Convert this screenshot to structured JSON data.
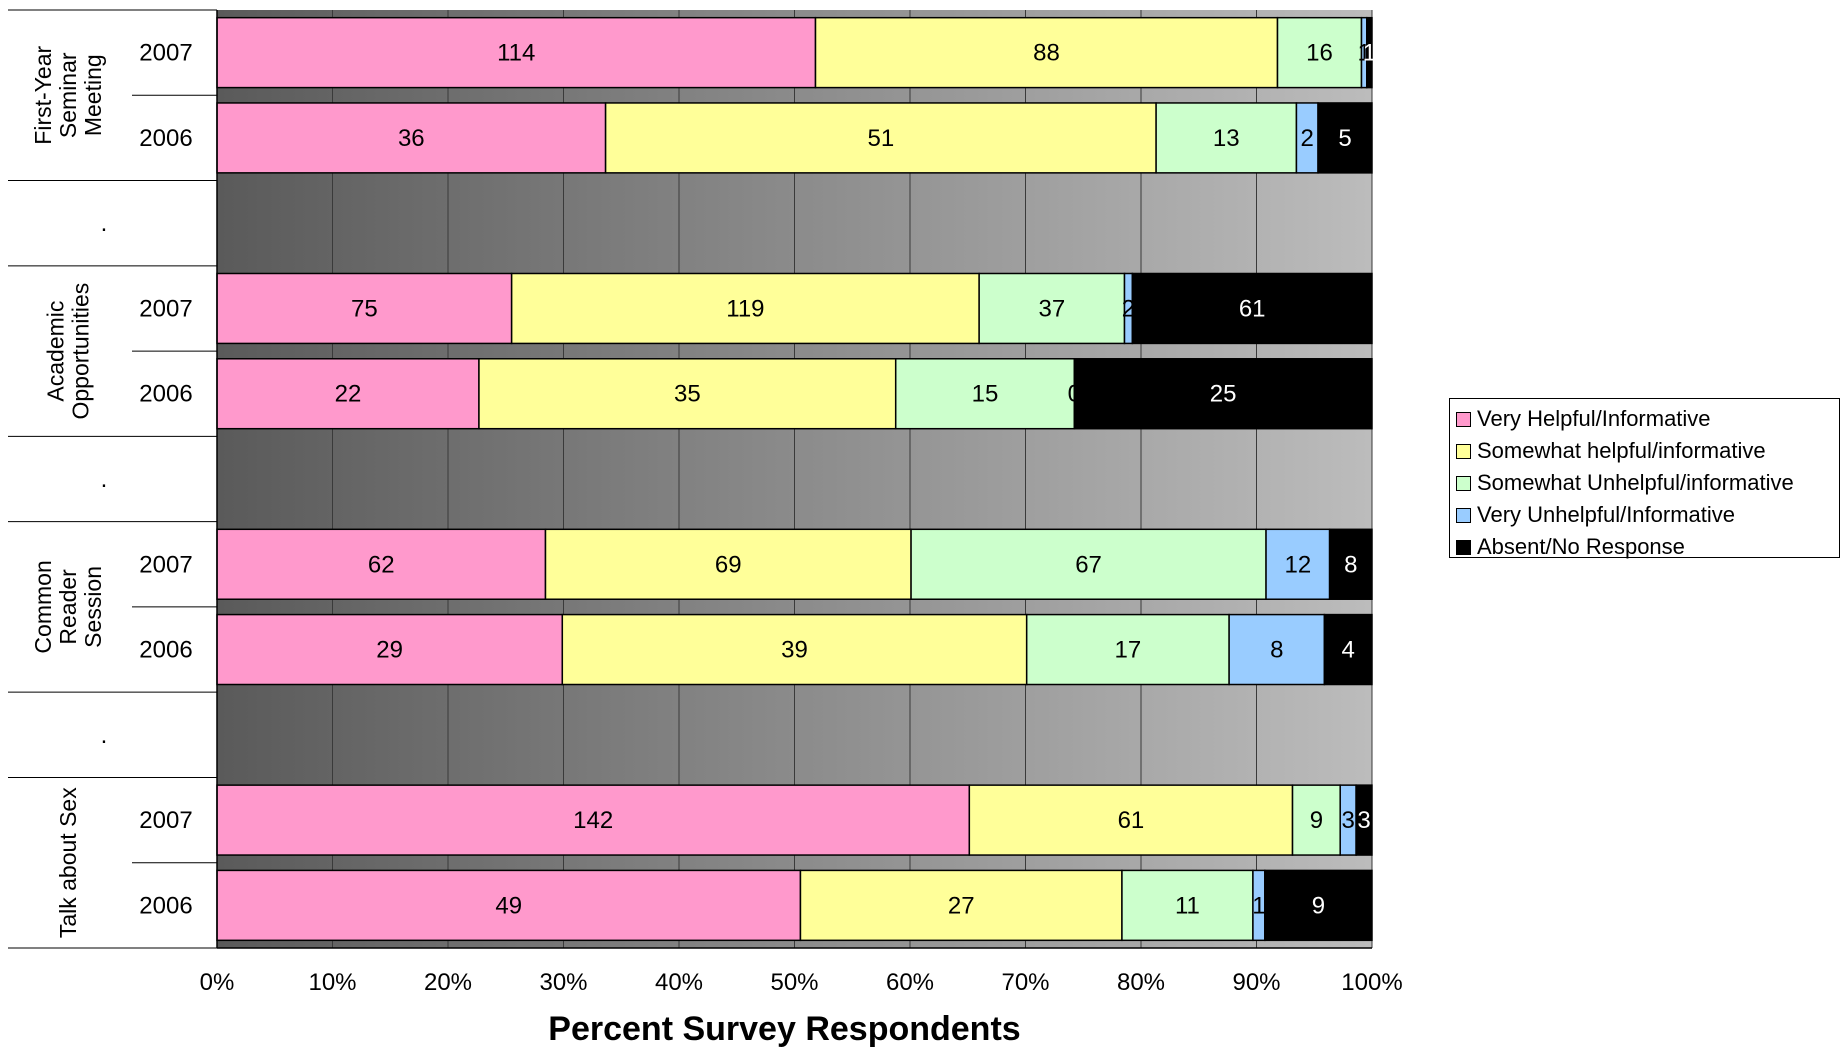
{
  "chart_data": {
    "type": "bar",
    "orientation": "horizontal",
    "stacked": "percent",
    "xlabel": "Percent Survey Respondents",
    "xlim": [
      0,
      100
    ],
    "xticks": [
      "0%",
      "10%",
      "20%",
      "30%",
      "40%",
      "50%",
      "60%",
      "70%",
      "80%",
      "90%",
      "100%"
    ],
    "groups": [
      {
        "label": "First-Year Seminar Meeting",
        "rows": [
          {
            "label": "2007",
            "values": [
              114,
              88,
              16,
              1,
              1
            ]
          },
          {
            "label": "2006",
            "values": [
              36,
              51,
              13,
              2,
              5
            ]
          }
        ]
      },
      {
        "label": ".",
        "rows": []
      },
      {
        "label": "Academic Opportunities",
        "rows": [
          {
            "label": "2007",
            "values": [
              75,
              119,
              37,
              2,
              61
            ]
          },
          {
            "label": "2006",
            "values": [
              22,
              35,
              15,
              0,
              25
            ]
          }
        ]
      },
      {
        "label": ".",
        "rows": []
      },
      {
        "label": "Common Reader Session",
        "rows": [
          {
            "label": "2007",
            "values": [
              62,
              69,
              67,
              12,
              8
            ]
          },
          {
            "label": "2006",
            "values": [
              29,
              39,
              17,
              8,
              4
            ]
          }
        ]
      },
      {
        "label": ".",
        "rows": []
      },
      {
        "label": "Talk about Sex",
        "rows": [
          {
            "label": "2007",
            "values": [
              142,
              61,
              9,
              3,
              3
            ]
          },
          {
            "label": "2006",
            "values": [
              49,
              27,
              11,
              1,
              9
            ]
          }
        ]
      }
    ],
    "series": [
      {
        "name": "Very Helpful/Informative",
        "color": "#ff99cc"
      },
      {
        "name": "Somewhat helpful/informative",
        "color": "#ffff99"
      },
      {
        "name": "Somewhat Unhelpful/informative",
        "color": "#ccffcc"
      },
      {
        "name": "Very Unhelpful/Informative",
        "color": "#99ccff"
      },
      {
        "name": "Absent/No Response",
        "color": "#000000"
      }
    ],
    "legend_position": "right",
    "grid": true,
    "background": "gradient-dark-to-light-gray"
  }
}
